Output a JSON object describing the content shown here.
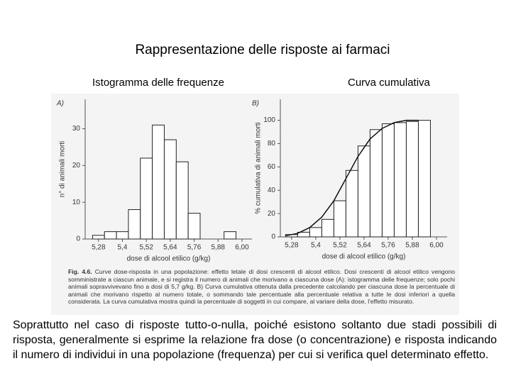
{
  "title": "Rappresentazione delle risposte ai farmaci",
  "subtitle_left": "Istogramma delle frequenze",
  "subtitle_right": "Curva cumulativa",
  "chart_data": [
    {
      "type": "histogram",
      "panel": "A)",
      "ylabel": "n° di animali morti",
      "xlabel": "dose di alcool etilico (g/kg)",
      "bins": [
        5.25,
        5.31,
        5.37,
        5.43,
        5.49,
        5.55,
        5.61,
        5.67,
        5.73,
        5.79,
        5.85,
        5.91,
        5.97
      ],
      "values": [
        1,
        2,
        2,
        8,
        22,
        31,
        27,
        21,
        7,
        0,
        0,
        2
      ],
      "xlim": [
        5.213,
        6.05
      ],
      "ylim": [
        0,
        38
      ],
      "xticks": [
        {
          "value": 5.28,
          "label": "5,28"
        },
        {
          "value": 5.4,
          "label": "5,4"
        },
        {
          "value": 5.52,
          "label": "5,52"
        },
        {
          "value": 5.64,
          "label": "5,64"
        },
        {
          "value": 5.76,
          "label": "5,76"
        },
        {
          "value": 5.88,
          "label": "5,88"
        },
        {
          "value": 6.0,
          "label": "6,00"
        }
      ],
      "yticks": [
        0,
        10,
        20,
        30
      ]
    },
    {
      "type": "histogram",
      "panel": "B)",
      "ylabel": "% cumulativa di animali morti",
      "xlabel": "dose di alcool etilico (g/kg)",
      "bins": [
        5.25,
        5.31,
        5.37,
        5.43,
        5.49,
        5.55,
        5.61,
        5.67,
        5.73,
        5.79,
        5.85,
        5.91,
        5.97
      ],
      "values": [
        2,
        4,
        8,
        15,
        31,
        57,
        78,
        92,
        97,
        98,
        99,
        100
      ],
      "curve": {
        "x": [
          5.25,
          5.31,
          5.37,
          5.43,
          5.49,
          5.55,
          5.61,
          5.67,
          5.73,
          5.79,
          5.85,
          5.91
        ],
        "values": [
          1,
          3,
          8,
          17,
          31,
          50,
          69,
          84,
          93,
          98,
          100,
          100
        ]
      },
      "xlim": [
        5.224,
        6.053
      ],
      "ylim": [
        0,
        118
      ],
      "xticks": [
        {
          "value": 5.28,
          "label": "5,28"
        },
        {
          "value": 5.4,
          "label": "5,4"
        },
        {
          "value": 5.52,
          "label": "5,52"
        },
        {
          "value": 5.64,
          "label": "5,64"
        },
        {
          "value": 5.76,
          "label": "5,76"
        },
        {
          "value": 5.88,
          "label": "5,88"
        },
        {
          "value": 6.0,
          "label": "6,00"
        }
      ],
      "yticks": [
        0,
        20,
        40,
        60,
        80,
        100
      ]
    }
  ],
  "caption": {
    "label": "Fig. 4.6.",
    "text": "Curve dose-risposta in una popolazione: effetto letale di dosi crescenti di alcool etilico. Dosi crescenti di alcool etilico vengono somministrate a ciascun animale, e si registra il numero di animali che morivano a ciascuna dose (A): istogramma delle frequenze; solo pochi animali sopravvivevano fino a dosi di 5,7 g/kg. B) Curva cumulativa ottenuta dalla precedente calcolando per ciascuna dose la percentuale di animali che morivano rispetto al numero totale, o sommando tale percentuale alla percentuale relativa a tutte le dosi inferiori a quella considerata. La curva cumulativa mostra quindi la percentuale di soggetti in cui compare, al variare della dose, l'effetto misurato."
  },
  "body": "Soprattutto nel caso di risposte tutto-o-nulla, poiché esistono soltanto due stadi possibili di risposta, generalmente si esprime la relazione fra dose (o concentrazione) e risposta indicando il numero di individui in una popolazione (frequenza) per cui si verifica quel determinato effetto."
}
